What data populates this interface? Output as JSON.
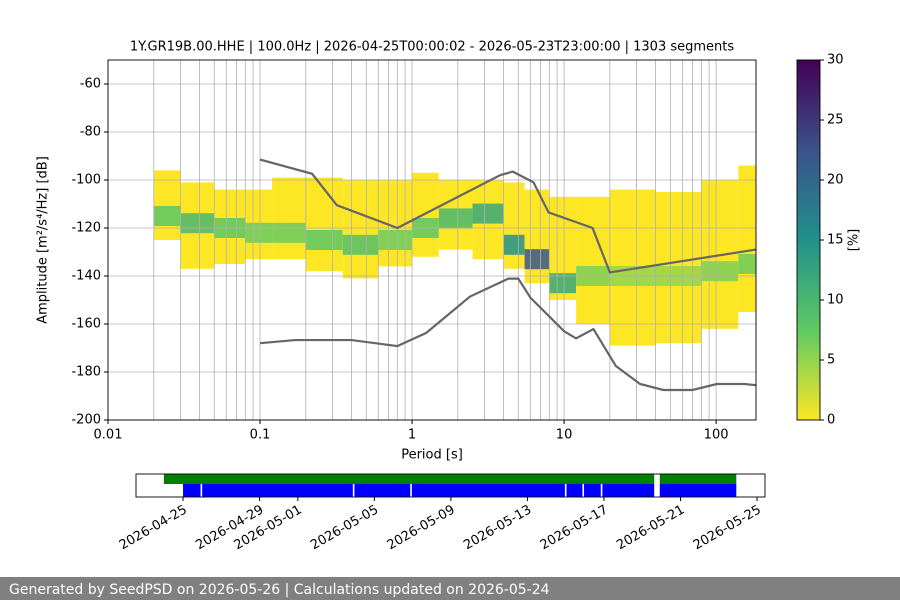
{
  "chart_data": [
    {
      "type": "ppsd",
      "title": "1Y.GR19B.00.HHE | 100.0Hz | 2026-04-25T00:00:02 - 2026-05-23T23:00:00 | 1303 segments",
      "xlabel": "Period [s]",
      "ylabel": "Amplitude [m²/s⁴/Hz] [dB]",
      "log_x": true,
      "grid": true,
      "xlim": [
        0.01,
        183
      ],
      "xticks": [
        0.01,
        0.1,
        1,
        10,
        100
      ],
      "xminorticks": [
        0.02,
        0.03,
        0.04,
        0.05,
        0.06,
        0.07,
        0.08,
        0.09,
        0.2,
        0.3,
        0.4,
        0.5,
        0.6,
        0.7,
        0.8,
        0.9,
        2,
        3,
        4,
        5,
        6,
        7,
        8,
        9,
        20,
        30,
        40,
        50,
        60,
        70,
        80,
        90
      ],
      "ylim": [
        -200,
        -50
      ],
      "yticks": [
        -200,
        -180,
        -160,
        -140,
        -120,
        -100,
        -80,
        -60
      ],
      "density": {
        "periods": [
          0.02,
          0.03,
          0.05,
          0.08,
          0.12,
          0.2,
          0.35,
          0.6,
          1.0,
          1.5,
          2.5,
          4,
          5.5,
          8,
          12,
          20,
          40,
          80,
          140
        ],
        "min": [
          -125,
          -137,
          -135,
          -133,
          -133,
          -138,
          -141,
          -136,
          -132,
          -129,
          -133,
          -137,
          -143,
          -150,
          -160,
          -169,
          -168,
          -162,
          -155
        ],
        "max": [
          -96,
          -101,
          -104,
          -104,
          -99,
          -99,
          -100,
          -100,
          -97,
          -100,
          -100,
          -101,
          -104,
          -107,
          -107,
          -104,
          -105,
          -100,
          -94
        ],
        "mode": [
          -115,
          -118,
          -120,
          -122,
          -122,
          -125,
          -127,
          -125,
          -120,
          -116,
          -114,
          -127,
          -133,
          -143,
          -140,
          -140,
          -140,
          -138,
          -135
        ],
        "mode_density": [
          8,
          10,
          8,
          7,
          7,
          8,
          9,
          7,
          8,
          10,
          12,
          15,
          22,
          12,
          6,
          5,
          5,
          6,
          7
        ]
      },
      "noise_models": [
        {
          "color": "#666666",
          "x": [
            0.1,
            0.22,
            0.32,
            0.8,
            3.8,
            4.6,
            6.3,
            7.9,
            15.4,
            20,
            183
          ],
          "values": [
            -91.5,
            -97.4,
            -110.5,
            -120,
            -98,
            -96.5,
            -101,
            -113.5,
            -120,
            -138.5,
            -129
          ]
        },
        {
          "color": "#666666",
          "x": [
            0.1,
            0.17,
            0.4,
            0.8,
            1.24,
            2.4,
            4.3,
            5,
            6,
            10,
            12,
            15.6,
            21.9,
            31.6,
            45,
            70,
            101,
            154,
            183
          ],
          "values": [
            -168,
            -166.7,
            -166.7,
            -169.2,
            -163.7,
            -148.6,
            -141.1,
            -141.1,
            -149,
            -163,
            -166,
            -162.1,
            -177.5,
            -185,
            -187.5,
            -187.5,
            -185,
            -185,
            -185.5
          ]
        }
      ],
      "colorbar": {
        "label": "[%]",
        "clim": [
          0,
          30
        ],
        "ticks": [
          0,
          5,
          10,
          15,
          20,
          25,
          30
        ],
        "colormap": [
          "#fde725",
          "#5ec962",
          "#21918c",
          "#3b528b",
          "#440154"
        ]
      }
    },
    {
      "type": "timeline",
      "xlim": [
        "2026-04-22T13:00",
        "2026-05-25T10:00"
      ],
      "xticks": [
        "2026-04-25",
        "2026-04-29",
        "2026-05-01",
        "2026-05-05",
        "2026-05-09",
        "2026-05-13",
        "2026-05-17",
        "2026-05-21",
        "2026-05-25"
      ],
      "rows": [
        {
          "color": "#008000",
          "segments": [
            [
              "2026-04-24T00:00",
              "2026-05-19T15:00"
            ],
            [
              "2026-05-19T22:00",
              "2026-05-23T22:00"
            ]
          ]
        },
        {
          "color": "#0000ff",
          "segments": [
            [
              "2026-04-25T00:00",
              "2026-04-25T22:00"
            ],
            [
              "2026-04-26T00:00",
              "2026-05-03T21:00"
            ],
            [
              "2026-05-03T23:00",
              "2026-05-06T21:00"
            ],
            [
              "2026-05-06T23:00",
              "2026-05-14T23:00"
            ],
            [
              "2026-05-15T01:00",
              "2026-05-15T21:00"
            ],
            [
              "2026-05-15T23:00",
              "2026-05-16T20:00"
            ],
            [
              "2026-05-16T22:00",
              "2026-05-19T15:00"
            ],
            [
              "2026-05-19T22:00",
              "2026-05-23T22:00"
            ]
          ]
        }
      ]
    }
  ],
  "footer": "Generated by SeedPSD on 2026-05-26 | Calculations updated on 2026-05-24"
}
